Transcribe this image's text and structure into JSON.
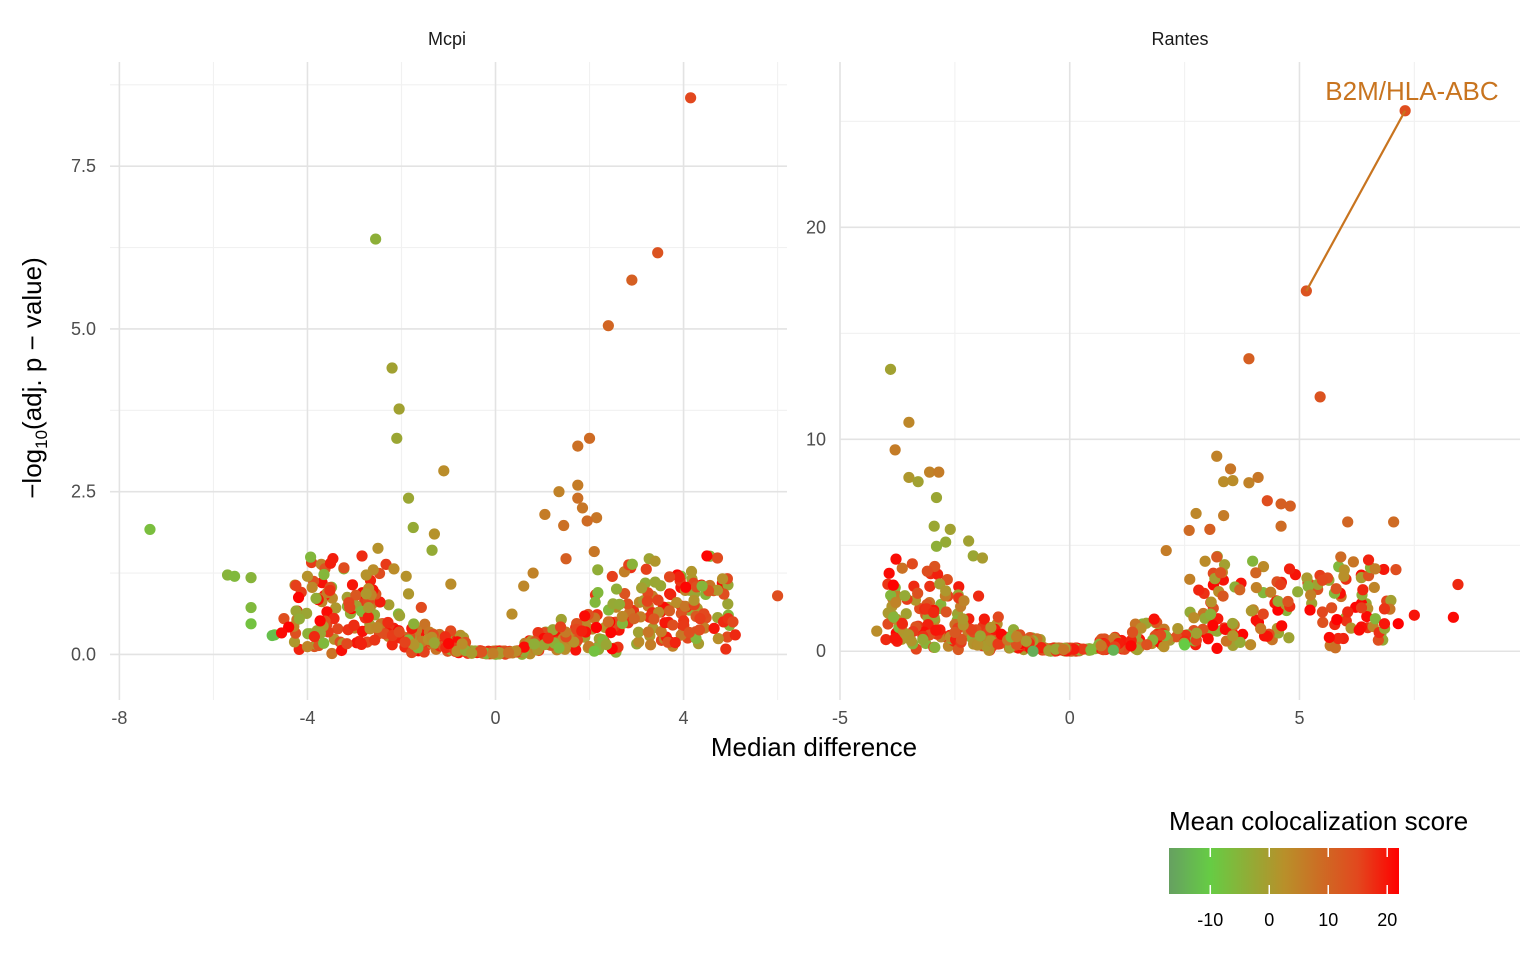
{
  "chart_data": {
    "type": "scatter",
    "xlabel": "Median difference",
    "ylabel": {
      "prefix": "−log",
      "subscript": "10",
      "suffix": "(adj. p − value)"
    },
    "legend": {
      "title": "Mean colocalization score",
      "placement": "bottom-right",
      "ticks": [
        -10,
        0,
        10,
        20
      ],
      "tick_labels": [
        "-10",
        "0",
        "10",
        "20"
      ],
      "range": [
        -17,
        22
      ],
      "colors": {
        "low": "#66a061",
        "mid_low": "#66cc44",
        "mid": "#b8902a",
        "mid_high": "#e2481e",
        "high": "#ff0000"
      }
    },
    "facets": [
      {
        "title": "Mcpi",
        "xlim": [
          -8.2,
          6.2
        ],
        "ylim": [
          -0.7,
          9.1
        ],
        "x_ticks": [
          -8,
          -4,
          0,
          4
        ],
        "x_tick_labels": [
          "-8",
          "-4",
          "0",
          "4"
        ],
        "y_ticks": [
          0.0,
          2.5,
          5.0,
          7.5
        ],
        "y_tick_labels": [
          "0.0",
          "2.5",
          "5.0",
          "7.5"
        ],
        "points": [
          {
            "x": 4.15,
            "y": 8.55,
            "score": 15
          },
          {
            "x": -2.55,
            "y": 6.38,
            "score": -4
          },
          {
            "x": 3.45,
            "y": 6.17,
            "score": 13
          },
          {
            "x": 2.9,
            "y": 5.75,
            "score": 11
          },
          {
            "x": 2.4,
            "y": 5.05,
            "score": 10
          },
          {
            "x": -2.2,
            "y": 4.4,
            "score": -1
          },
          {
            "x": -2.05,
            "y": 3.77,
            "score": -1
          },
          {
            "x": -2.1,
            "y": 3.32,
            "score": -2
          },
          {
            "x": 2.0,
            "y": 3.32,
            "score": 9
          },
          {
            "x": 1.75,
            "y": 3.2,
            "score": 8
          },
          {
            "x": -1.1,
            "y": 2.82,
            "score": 3
          },
          {
            "x": 1.75,
            "y": 2.6,
            "score": 6
          },
          {
            "x": 1.35,
            "y": 2.5,
            "score": 5
          },
          {
            "x": -1.85,
            "y": 2.4,
            "score": -2
          },
          {
            "x": 1.75,
            "y": 2.4,
            "score": 8
          },
          {
            "x": 1.85,
            "y": 2.25,
            "score": 7
          },
          {
            "x": 1.05,
            "y": 2.15,
            "score": 6
          },
          {
            "x": 2.15,
            "y": 2.1,
            "score": 7
          },
          {
            "x": 1.95,
            "y": 2.05,
            "score": 9
          },
          {
            "x": 1.45,
            "y": 1.98,
            "score": 8
          },
          {
            "x": -1.75,
            "y": 1.95,
            "score": -3
          },
          {
            "x": -7.35,
            "y": 1.92,
            "score": -7
          },
          {
            "x": -1.3,
            "y": 1.85,
            "score": 2
          },
          {
            "x": -2.5,
            "y": 1.63,
            "score": 2
          },
          {
            "x": 2.1,
            "y": 1.58,
            "score": 7
          },
          {
            "x": -1.35,
            "y": 1.6,
            "score": -3
          },
          {
            "x": 1.5,
            "y": 1.47,
            "score": 11
          },
          {
            "x": -5.7,
            "y": 1.22,
            "score": -5
          },
          {
            "x": -5.55,
            "y": 1.2,
            "score": -6
          },
          {
            "x": -5.2,
            "y": 1.18,
            "score": -5
          },
          {
            "x": -4.0,
            "y": 1.2,
            "score": 2
          },
          {
            "x": -3.9,
            "y": 1.03,
            "score": 4
          },
          {
            "x": 6.0,
            "y": 0.9,
            "score": 14
          },
          {
            "x": -5.2,
            "y": 0.72,
            "score": -6
          },
          {
            "x": -5.2,
            "y": 0.47,
            "score": -8
          },
          {
            "x": -4.7,
            "y": 0.3,
            "score": -9
          },
          {
            "x": -4.75,
            "y": 0.29,
            "score": -12
          },
          {
            "x": -4.5,
            "y": 0.55,
            "score": 14
          },
          {
            "x": -4.4,
            "y": 0.42,
            "score": 22
          },
          {
            "x": -4.55,
            "y": 0.33,
            "score": 21
          },
          {
            "x": -4.0,
            "y": 0.12,
            "score": 4
          },
          {
            "x": -2.6,
            "y": 1.3,
            "score": 3
          },
          {
            "x": -2.75,
            "y": 1.22,
            "score": 2
          },
          {
            "x": -2.75,
            "y": 0.93,
            "score": 1
          },
          {
            "x": -2.7,
            "y": 0.72,
            "score": 1
          },
          {
            "x": -1.9,
            "y": 1.2,
            "score": 2
          },
          {
            "x": -1.85,
            "y": 0.93,
            "score": 1
          },
          {
            "x": -0.95,
            "y": 1.08,
            "score": 3
          },
          {
            "x": 0.8,
            "y": 1.25,
            "score": 5
          },
          {
            "x": 0.6,
            "y": 1.05,
            "score": 4
          },
          {
            "x": 0.35,
            "y": 0.62,
            "score": 3
          },
          {
            "x": 2.4,
            "y": 0.5,
            "score": 9
          },
          {
            "x": 2.95,
            "y": 0.55,
            "score": 10
          },
          {
            "x": 3.7,
            "y": 0.67,
            "score": 11
          },
          {
            "x": 4.35,
            "y": 0.55,
            "score": 16
          },
          {
            "x": 4.85,
            "y": 0.5,
            "score": 18
          },
          {
            "x": 4.95,
            "y": 0.55,
            "score": 17
          },
          {
            "x": 5.1,
            "y": 0.3,
            "score": 18
          },
          {
            "x": 5.05,
            "y": 0.5,
            "score": 15
          },
          {
            "x": 4.65,
            "y": 0.4,
            "score": 20
          },
          {
            "x": 1.35,
            "y": 0.1,
            "score": -6
          },
          {
            "x": 2.1,
            "y": 0.05,
            "score": -8
          }
        ]
      },
      {
        "title": "Rantes",
        "xlim": [
          -5.0,
          9.8
        ],
        "ylim": [
          -2.3,
          27.8
        ],
        "x_ticks": [
          -5,
          0,
          5
        ],
        "x_tick_labels": [
          "-5",
          "0",
          "5"
        ],
        "y_ticks": [
          0,
          10,
          20
        ],
        "y_tick_labels": [
          "0",
          "10",
          "20"
        ],
        "annotation": {
          "text": "B2M/HLA-ABC",
          "color": "#c8741f"
        },
        "points": [
          {
            "x": 7.3,
            "y": 25.5,
            "score": 14
          },
          {
            "x": 5.15,
            "y": 17.0,
            "score": 13
          },
          {
            "x": 3.9,
            "y": 13.8,
            "score": 11
          },
          {
            "x": -3.9,
            "y": 13.3,
            "score": -1
          },
          {
            "x": 5.45,
            "y": 12.0,
            "score": 13
          },
          {
            "x": -3.5,
            "y": 10.8,
            "score": 4
          },
          {
            "x": -3.8,
            "y": 9.5,
            "score": 6
          },
          {
            "x": 3.2,
            "y": 9.2,
            "score": 5
          },
          {
            "x": 3.5,
            "y": 8.6,
            "score": 7
          },
          {
            "x": -3.05,
            "y": 8.45,
            "score": 5
          },
          {
            "x": -2.85,
            "y": 8.45,
            "score": 6
          },
          {
            "x": -3.5,
            "y": 8.2,
            "score": 1
          },
          {
            "x": -3.3,
            "y": 8.0,
            "score": -1
          },
          {
            "x": 3.35,
            "y": 8.0,
            "score": 3
          },
          {
            "x": 3.55,
            "y": 8.05,
            "score": 3
          },
          {
            "x": 3.9,
            "y": 7.95,
            "score": 5
          },
          {
            "x": 4.1,
            "y": 8.2,
            "score": 7
          },
          {
            "x": -2.9,
            "y": 7.25,
            "score": -2
          },
          {
            "x": 4.3,
            "y": 7.1,
            "score": 14
          },
          {
            "x": 4.6,
            "y": 6.95,
            "score": 11
          },
          {
            "x": 4.8,
            "y": 6.85,
            "score": 11
          },
          {
            "x": 2.75,
            "y": 6.5,
            "score": 4
          },
          {
            "x": 3.35,
            "y": 6.4,
            "score": 6
          },
          {
            "x": 7.05,
            "y": 6.1,
            "score": 9
          },
          {
            "x": 6.05,
            "y": 6.1,
            "score": 10
          },
          {
            "x": 4.6,
            "y": 5.9,
            "score": 9
          },
          {
            "x": -2.95,
            "y": 5.9,
            "score": -2
          },
          {
            "x": -2.6,
            "y": 5.75,
            "score": -1
          },
          {
            "x": 2.6,
            "y": 5.7,
            "score": 9
          },
          {
            "x": 3.05,
            "y": 5.75,
            "score": 11
          },
          {
            "x": -2.2,
            "y": 5.2,
            "score": -1
          },
          {
            "x": -2.7,
            "y": 5.15,
            "score": -3
          },
          {
            "x": -2.9,
            "y": 4.95,
            "score": -4
          },
          {
            "x": 2.1,
            "y": 4.75,
            "score": 6
          },
          {
            "x": -2.1,
            "y": 4.5,
            "score": -2
          },
          {
            "x": -1.9,
            "y": 4.4,
            "score": 0
          },
          {
            "x": 5.9,
            "y": 4.45,
            "score": 9
          },
          {
            "x": 3.2,
            "y": 4.45,
            "score": 12
          },
          {
            "x": 7.1,
            "y": 3.85,
            "score": 14
          },
          {
            "x": 4.05,
            "y": 3.7,
            "score": 10
          },
          {
            "x": 8.45,
            "y": 3.15,
            "score": 18
          },
          {
            "x": -2.7,
            "y": 2.85,
            "score": 1
          },
          {
            "x": 3.7,
            "y": 2.9,
            "score": 10
          },
          {
            "x": 5.8,
            "y": 2.95,
            "score": 13
          },
          {
            "x": 4.75,
            "y": 2.35,
            "score": 13
          },
          {
            "x": 5.5,
            "y": 1.85,
            "score": 15
          },
          {
            "x": 5.7,
            "y": 2.05,
            "score": 14
          },
          {
            "x": 6.05,
            "y": 1.85,
            "score": 18
          },
          {
            "x": 6.35,
            "y": 2.05,
            "score": 16
          },
          {
            "x": 6.85,
            "y": 2.0,
            "score": 17
          },
          {
            "x": 7.5,
            "y": 1.7,
            "score": 20
          },
          {
            "x": 8.35,
            "y": 1.6,
            "score": 21
          },
          {
            "x": 6.85,
            "y": 1.3,
            "score": 20
          },
          {
            "x": 7.15,
            "y": 1.3,
            "score": 22
          },
          {
            "x": 6.3,
            "y": 1.0,
            "score": 21
          },
          {
            "x": 5.65,
            "y": 0.65,
            "score": 21
          },
          {
            "x": -4.0,
            "y": 0.55,
            "score": 18
          },
          {
            "x": -3.8,
            "y": 0.6,
            "score": 20
          },
          {
            "x": -4.2,
            "y": 0.95,
            "score": 3
          },
          {
            "x": -0.8,
            "y": 0.0,
            "score": -15
          },
          {
            "x": 0.95,
            "y": 0.05,
            "score": -14
          },
          {
            "x": 2.5,
            "y": 0.3,
            "score": -10
          }
        ]
      }
    ]
  }
}
